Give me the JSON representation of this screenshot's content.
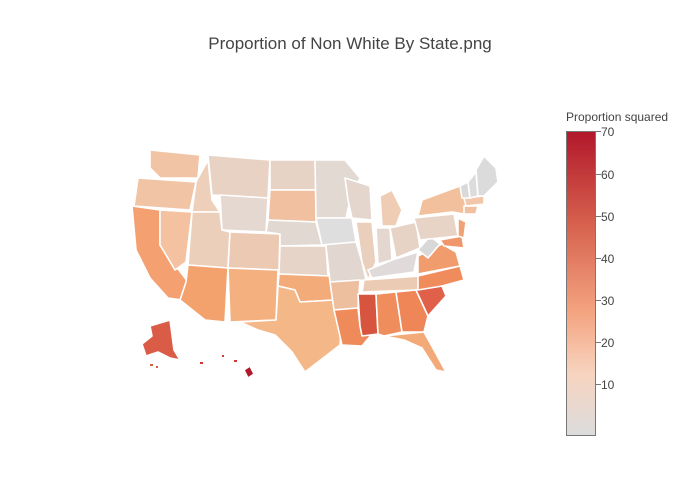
{
  "title": "Proportion of Non White By State.png",
  "colorbar": {
    "title": "Proportion squared",
    "ticks": [
      "70",
      "60",
      "50",
      "40",
      "30",
      "20",
      "10"
    ]
  },
  "colors": {
    "high": "#b2182b",
    "mid_high": "#d6604d",
    "mid": "#f4a582",
    "low": "#f7d4c0",
    "lowest": "#dcdcdc"
  }
}
